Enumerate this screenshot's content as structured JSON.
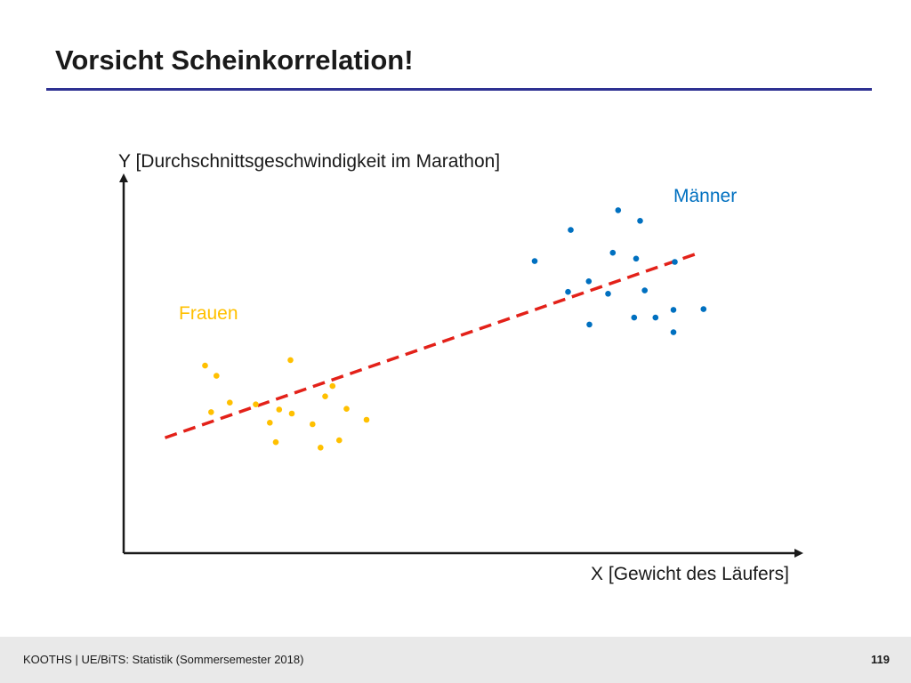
{
  "slide": {
    "title": "Vorsicht Scheinkorrelation!",
    "rule_color": "#2e3192"
  },
  "footer": {
    "text": "KOOTHS | UE/BiTS: Statistik (Sommersemester 2018)",
    "page": "119"
  },
  "chart_data": {
    "type": "scatter",
    "xlabel": "X [Gewicht des Läufers]",
    "ylabel": "Y [Durchschnittsgeschwindigkeit im Marathon]",
    "xlim": [
      0,
      100
    ],
    "ylim": [
      0,
      100
    ],
    "ticks": false,
    "grid": false,
    "series": [
      {
        "name": "Frauen",
        "color": "#ffc000",
        "points": [
          [
            12.2,
            51.2
          ],
          [
            13.1,
            38.5
          ],
          [
            13.9,
            48.4
          ],
          [
            15.9,
            41.1
          ],
          [
            19.8,
            40.6
          ],
          [
            21.9,
            35.6
          ],
          [
            22.8,
            30.3
          ],
          [
            23.3,
            39.2
          ],
          [
            25.0,
            52.7
          ],
          [
            25.2,
            38.1
          ],
          [
            28.3,
            35.2
          ],
          [
            29.5,
            28.8
          ],
          [
            30.2,
            42.8
          ],
          [
            31.3,
            45.6
          ],
          [
            32.3,
            30.8
          ],
          [
            33.4,
            39.4
          ],
          [
            36.4,
            36.4
          ]
        ]
      },
      {
        "name": "Männer",
        "color": "#0070c0",
        "points": [
          [
            61.6,
            79.7
          ],
          [
            66.6,
            71.3
          ],
          [
            67.0,
            88.2
          ],
          [
            69.7,
            74.2
          ],
          [
            69.8,
            62.4
          ],
          [
            72.6,
            70.8
          ],
          [
            73.3,
            82.0
          ],
          [
            74.1,
            93.6
          ],
          [
            76.5,
            64.3
          ],
          [
            76.8,
            80.4
          ],
          [
            77.4,
            90.7
          ],
          [
            78.1,
            71.7
          ],
          [
            79.7,
            64.3
          ],
          [
            82.4,
            66.4
          ],
          [
            82.4,
            60.3
          ],
          [
            82.6,
            79.5
          ],
          [
            86.9,
            66.6
          ]
        ]
      }
    ],
    "trendline": {
      "style": "dashed",
      "color": "#e32119",
      "x": [
        6.2,
        86.3
      ],
      "y": [
        31.5,
        82.0
      ]
    }
  }
}
